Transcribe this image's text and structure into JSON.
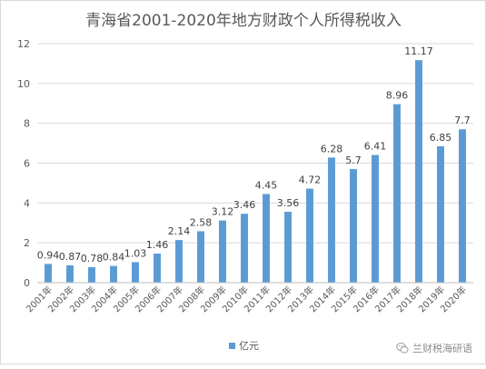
{
  "chart_data": {
    "type": "bar",
    "title": "青海省2001-2020年地方财政个人所得税收入",
    "categories": [
      "2001年",
      "2002年",
      "2003年",
      "2004年",
      "2005年",
      "2006年",
      "2007年",
      "2008年",
      "2009年",
      "2010年",
      "2011年",
      "2012年",
      "2013年",
      "2014年",
      "2015年",
      "2016年",
      "2017年",
      "2018年",
      "2019年",
      "2020年"
    ],
    "series": [
      {
        "name": "亿元",
        "values": [
          0.94,
          0.87,
          0.78,
          0.84,
          1.03,
          1.46,
          2.14,
          2.58,
          3.12,
          3.46,
          4.45,
          3.56,
          4.72,
          6.28,
          5.7,
          6.41,
          8.96,
          11.17,
          6.85,
          7.7
        ]
      }
    ],
    "data_labels": [
      "0.94",
      "0.87",
      "0.78",
      "0.84",
      "1.03",
      "1.46",
      "2.14",
      "2.58",
      "3.12",
      "3.46",
      "4.45",
      "3.56",
      "4.72",
      "6.28",
      "5.7",
      "6.41",
      "8.96",
      "11.17",
      "6.85",
      "7.7"
    ],
    "y_ticks": [
      "0",
      "2",
      "4",
      "6",
      "8",
      "10",
      "12"
    ],
    "ylim": [
      0,
      12
    ],
    "grid": true,
    "legend_position": "bottom",
    "bar_color": "#5b9bd5"
  },
  "watermark": {
    "text": "兰财税海研语"
  }
}
